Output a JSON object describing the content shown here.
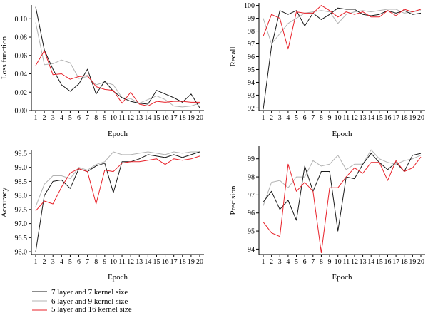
{
  "colors": {
    "series_1": "#1a1a1a",
    "series_2": "#b3b3b3",
    "series_3": "#e8222a",
    "axis": "#000000"
  },
  "legend": {
    "placement": "bottom-left",
    "entries": [
      "7 layer and 7 kernel size",
      "6 layer and 9 kernel size",
      "5 layer and 16 kernel size"
    ]
  },
  "chart_data": [
    {
      "id": "loss",
      "type": "line",
      "xlabel": "Epoch",
      "ylabel": "Loss function",
      "x": [
        1,
        2,
        3,
        4,
        5,
        6,
        7,
        8,
        9,
        10,
        11,
        12,
        13,
        14,
        15,
        16,
        17,
        18,
        19,
        20
      ],
      "ylim": [
        0,
        0.115
      ],
      "yticks": [
        0.0,
        0.02,
        0.04,
        0.06,
        0.08,
        0.1
      ],
      "ytick_labels": [
        "0.00",
        "0.02",
        "0.04",
        "0.06",
        "0.08",
        "0.10"
      ],
      "grid": false,
      "series": [
        {
          "name": "7 layer and 7 kernel size",
          "values": [
            0.113,
            0.066,
            0.045,
            0.028,
            0.021,
            0.029,
            0.045,
            0.018,
            0.032,
            0.021,
            0.014,
            0.01,
            0.008,
            0.007,
            0.022,
            0.018,
            0.014,
            0.009,
            0.018,
            0.003
          ]
        },
        {
          "name": "6 layer and 9 kernel size",
          "values": [
            0.096,
            0.05,
            0.051,
            0.055,
            0.052,
            0.035,
            0.037,
            0.028,
            0.031,
            0.028,
            0.014,
            0.013,
            0.008,
            0.012,
            0.016,
            0.012,
            0.005,
            0.004,
            0.005,
            0.008
          ]
        },
        {
          "name": "5 layer and 16 kernel size",
          "values": [
            0.049,
            0.065,
            0.039,
            0.04,
            0.034,
            0.037,
            0.038,
            0.026,
            0.023,
            0.022,
            0.008,
            0.02,
            0.007,
            0.005,
            0.01,
            0.009,
            0.01,
            0.01,
            0.009,
            0.009
          ]
        }
      ]
    },
    {
      "id": "recall",
      "type": "line",
      "xlabel": "Epoch",
      "ylabel": "Recall",
      "x": [
        1,
        2,
        3,
        4,
        5,
        6,
        7,
        8,
        9,
        10,
        11,
        12,
        13,
        14,
        15,
        16,
        17,
        18,
        19,
        20
      ],
      "ylim": [
        91.8,
        100.2
      ],
      "yticks": [
        92,
        93,
        94,
        95,
        96,
        97,
        98,
        99,
        100
      ],
      "ytick_labels": [
        "92",
        "93",
        "94",
        "95",
        "96",
        "97",
        "98",
        "99",
        "100"
      ],
      "grid": false,
      "series": [
        {
          "name": "7 layer and 7 kernel size",
          "values": [
            91.9,
            96.8,
            99.6,
            99.3,
            99.6,
            98.4,
            99.4,
            98.9,
            99.3,
            99.8,
            99.7,
            99.7,
            99.3,
            99.2,
            99.3,
            99.6,
            99.4,
            99.6,
            99.3,
            99.4
          ]
        },
        {
          "name": "6 layer and 9 kernel size",
          "values": [
            99.0,
            97.0,
            97.8,
            98.6,
            99.0,
            99.4,
            99.5,
            99.6,
            99.5,
            98.6,
            99.3,
            99.5,
            99.6,
            99.5,
            99.6,
            99.7,
            99.7,
            99.4,
            99.5,
            99.6
          ]
        },
        {
          "name": "5 layer and 16 kernel size",
          "values": [
            97.6,
            99.3,
            99.0,
            96.6,
            99.5,
            99.4,
            99.4,
            100.0,
            99.6,
            99.1,
            99.5,
            99.3,
            99.5,
            99.1,
            99.1,
            99.6,
            99.2,
            99.7,
            99.5,
            99.7
          ]
        }
      ]
    },
    {
      "id": "accuracy",
      "type": "line",
      "xlabel": "Epoch",
      "ylabel": "Accuracy",
      "x": [
        1,
        2,
        3,
        4,
        5,
        6,
        7,
        8,
        9,
        10,
        11,
        12,
        13,
        14,
        15,
        16,
        17,
        18,
        19,
        20
      ],
      "ylim": [
        95.9,
        99.6
      ],
      "yticks": [
        96.0,
        96.5,
        97.0,
        97.5,
        98.0,
        98.5,
        99.0,
        99.5
      ],
      "ytick_labels": [
        "96.0",
        "96.5",
        "97.0",
        "97.5",
        "98.0",
        "98.5",
        "99.0",
        "99.5"
      ],
      "grid": false,
      "series": [
        {
          "name": "7 layer and 7 kernel size",
          "values": [
            96.0,
            98.0,
            98.5,
            98.55,
            98.25,
            98.95,
            98.85,
            99.05,
            99.15,
            98.1,
            99.2,
            99.2,
            99.3,
            99.45,
            99.4,
            99.35,
            99.45,
            99.35,
            99.45,
            99.55
          ]
        },
        {
          "name": "6 layer and 9 kernel size",
          "values": [
            97.6,
            98.4,
            98.7,
            98.7,
            98.6,
            99.0,
            98.9,
            99.1,
            99.2,
            99.55,
            99.45,
            99.45,
            99.5,
            99.55,
            99.5,
            99.45,
            99.55,
            99.5,
            99.55,
            99.55
          ]
        },
        {
          "name": "5 layer and 16 kernel size",
          "values": [
            97.45,
            97.8,
            97.7,
            98.3,
            98.8,
            98.95,
            98.85,
            97.7,
            98.9,
            98.85,
            99.15,
            99.2,
            99.2,
            99.25,
            99.3,
            99.1,
            99.3,
            99.25,
            99.3,
            99.4
          ]
        }
      ]
    },
    {
      "id": "precision",
      "type": "line",
      "xlabel": "Epoch",
      "ylabel": "Precision",
      "x": [
        1,
        2,
        3,
        4,
        5,
        6,
        7,
        8,
        9,
        10,
        11,
        12,
        13,
        14,
        15,
        16,
        17,
        18,
        19,
        20
      ],
      "ylim": [
        93.7,
        99.7
      ],
      "yticks": [
        94,
        95,
        96,
        97,
        98,
        99
      ],
      "ytick_labels": [
        "94",
        "95",
        "96",
        "97",
        "98",
        "99"
      ],
      "grid": false,
      "series": [
        {
          "name": "7 layer and 7 kernel size",
          "values": [
            96.6,
            97.2,
            96.2,
            96.7,
            95.6,
            98.6,
            97.2,
            98.3,
            98.3,
            95.0,
            98.0,
            97.9,
            98.7,
            99.3,
            98.8,
            98.4,
            98.8,
            98.3,
            99.2,
            99.3
          ]
        },
        {
          "name": "6 layer and 9 kernel size",
          "values": [
            96.4,
            97.7,
            97.8,
            97.4,
            98.0,
            98.0,
            98.9,
            98.6,
            98.7,
            99.2,
            98.4,
            98.7,
            98.7,
            99.5,
            99.0,
            98.8,
            98.7,
            98.9,
            99.0,
            99.2
          ]
        },
        {
          "name": "5 layer and 16 kernel size",
          "values": [
            95.5,
            94.9,
            94.7,
            98.7,
            97.2,
            97.7,
            97.2,
            93.8,
            97.4,
            97.4,
            98.0,
            98.5,
            98.2,
            98.8,
            98.8,
            97.8,
            98.9,
            98.3,
            98.5,
            99.1
          ]
        }
      ]
    }
  ]
}
